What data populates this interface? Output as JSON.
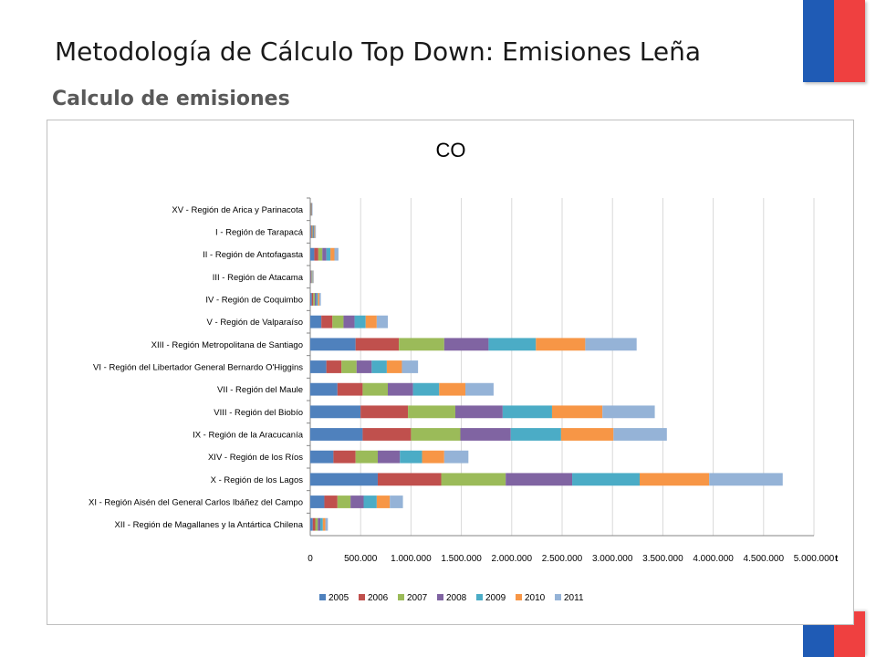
{
  "slide": {
    "title": "Metodología de Cálculo Top Down: Emisiones Leña",
    "subtitle": "Calculo de emisiones"
  },
  "colors": {
    "flag_blue": "#1f5bb5",
    "flag_red": "#ef4040"
  },
  "chart_data": {
    "type": "bar",
    "orientation": "horizontal",
    "stacked": true,
    "title": "CO",
    "xlabel": "",
    "ylabel": "",
    "unit_label": "t",
    "xlim": [
      0,
      5000000
    ],
    "x_ticks": [
      "0",
      "500.000",
      "1.000.000",
      "1.500.000",
      "2.000.000",
      "2.500.000",
      "3.000.000",
      "3.500.000",
      "4.000.000",
      "4.500.000",
      "5.000.000"
    ],
    "x_tick_values": [
      0,
      500000,
      1000000,
      1500000,
      2000000,
      2500000,
      3000000,
      3500000,
      4000000,
      4500000,
      5000000
    ],
    "grid": true,
    "legend_position": "bottom",
    "categories": [
      "XV - Región de Arica y Parinacota",
      "I - Región de Tarapacá",
      "II - Región de Antofagasta",
      "III - Región de Atacama",
      "IV - Región de Coquimbo",
      "V - Región de Valparaíso",
      "XIII - Región Metropolitana de Santiago",
      "VI - Región del Libertador General Bernardo O'Higgins",
      "VII - Región del Maule",
      "VIII - Región del Biobío",
      "IX - Región de la Aracucanía",
      "XIV - Región de los Ríos",
      "X - Región de los Lagos",
      "XI - Región Aisén del General Carlos Ibáñez del Campo",
      "XII - Región de Magallanes y la Antártica Chilena"
    ],
    "series": [
      {
        "name": "2005",
        "color": "#4f81bd",
        "values": [
          3000,
          8000,
          40000,
          5000,
          15000,
          110000,
          450000,
          160000,
          270000,
          500000,
          520000,
          230000,
          670000,
          140000,
          25000
        ]
      },
      {
        "name": "2006",
        "color": "#c0504d",
        "values": [
          3000,
          8000,
          40000,
          5000,
          15000,
          110000,
          430000,
          150000,
          250000,
          470000,
          480000,
          220000,
          630000,
          130000,
          25000
        ]
      },
      {
        "name": "2007",
        "color": "#9bbb59",
        "values": [
          3000,
          8000,
          40000,
          5000,
          15000,
          110000,
          450000,
          150000,
          250000,
          470000,
          490000,
          220000,
          640000,
          130000,
          25000
        ]
      },
      {
        "name": "2008",
        "color": "#8064a2",
        "values": [
          3000,
          8000,
          40000,
          5000,
          15000,
          110000,
          440000,
          150000,
          250000,
          470000,
          500000,
          220000,
          660000,
          130000,
          25000
        ]
      },
      {
        "name": "2009",
        "color": "#4bacc6",
        "values": [
          3000,
          8000,
          40000,
          5000,
          15000,
          110000,
          470000,
          150000,
          260000,
          490000,
          500000,
          220000,
          670000,
          130000,
          25000
        ]
      },
      {
        "name": "2010",
        "color": "#f79646",
        "values": [
          3000,
          8000,
          40000,
          5000,
          15000,
          110000,
          490000,
          150000,
          260000,
          500000,
          520000,
          220000,
          690000,
          130000,
          25000
        ]
      },
      {
        "name": "2011",
        "color": "#95b3d7",
        "values": [
          3000,
          8000,
          40000,
          5000,
          15000,
          110000,
          510000,
          160000,
          280000,
          520000,
          530000,
          240000,
          730000,
          130000,
          25000
        ]
      }
    ]
  }
}
